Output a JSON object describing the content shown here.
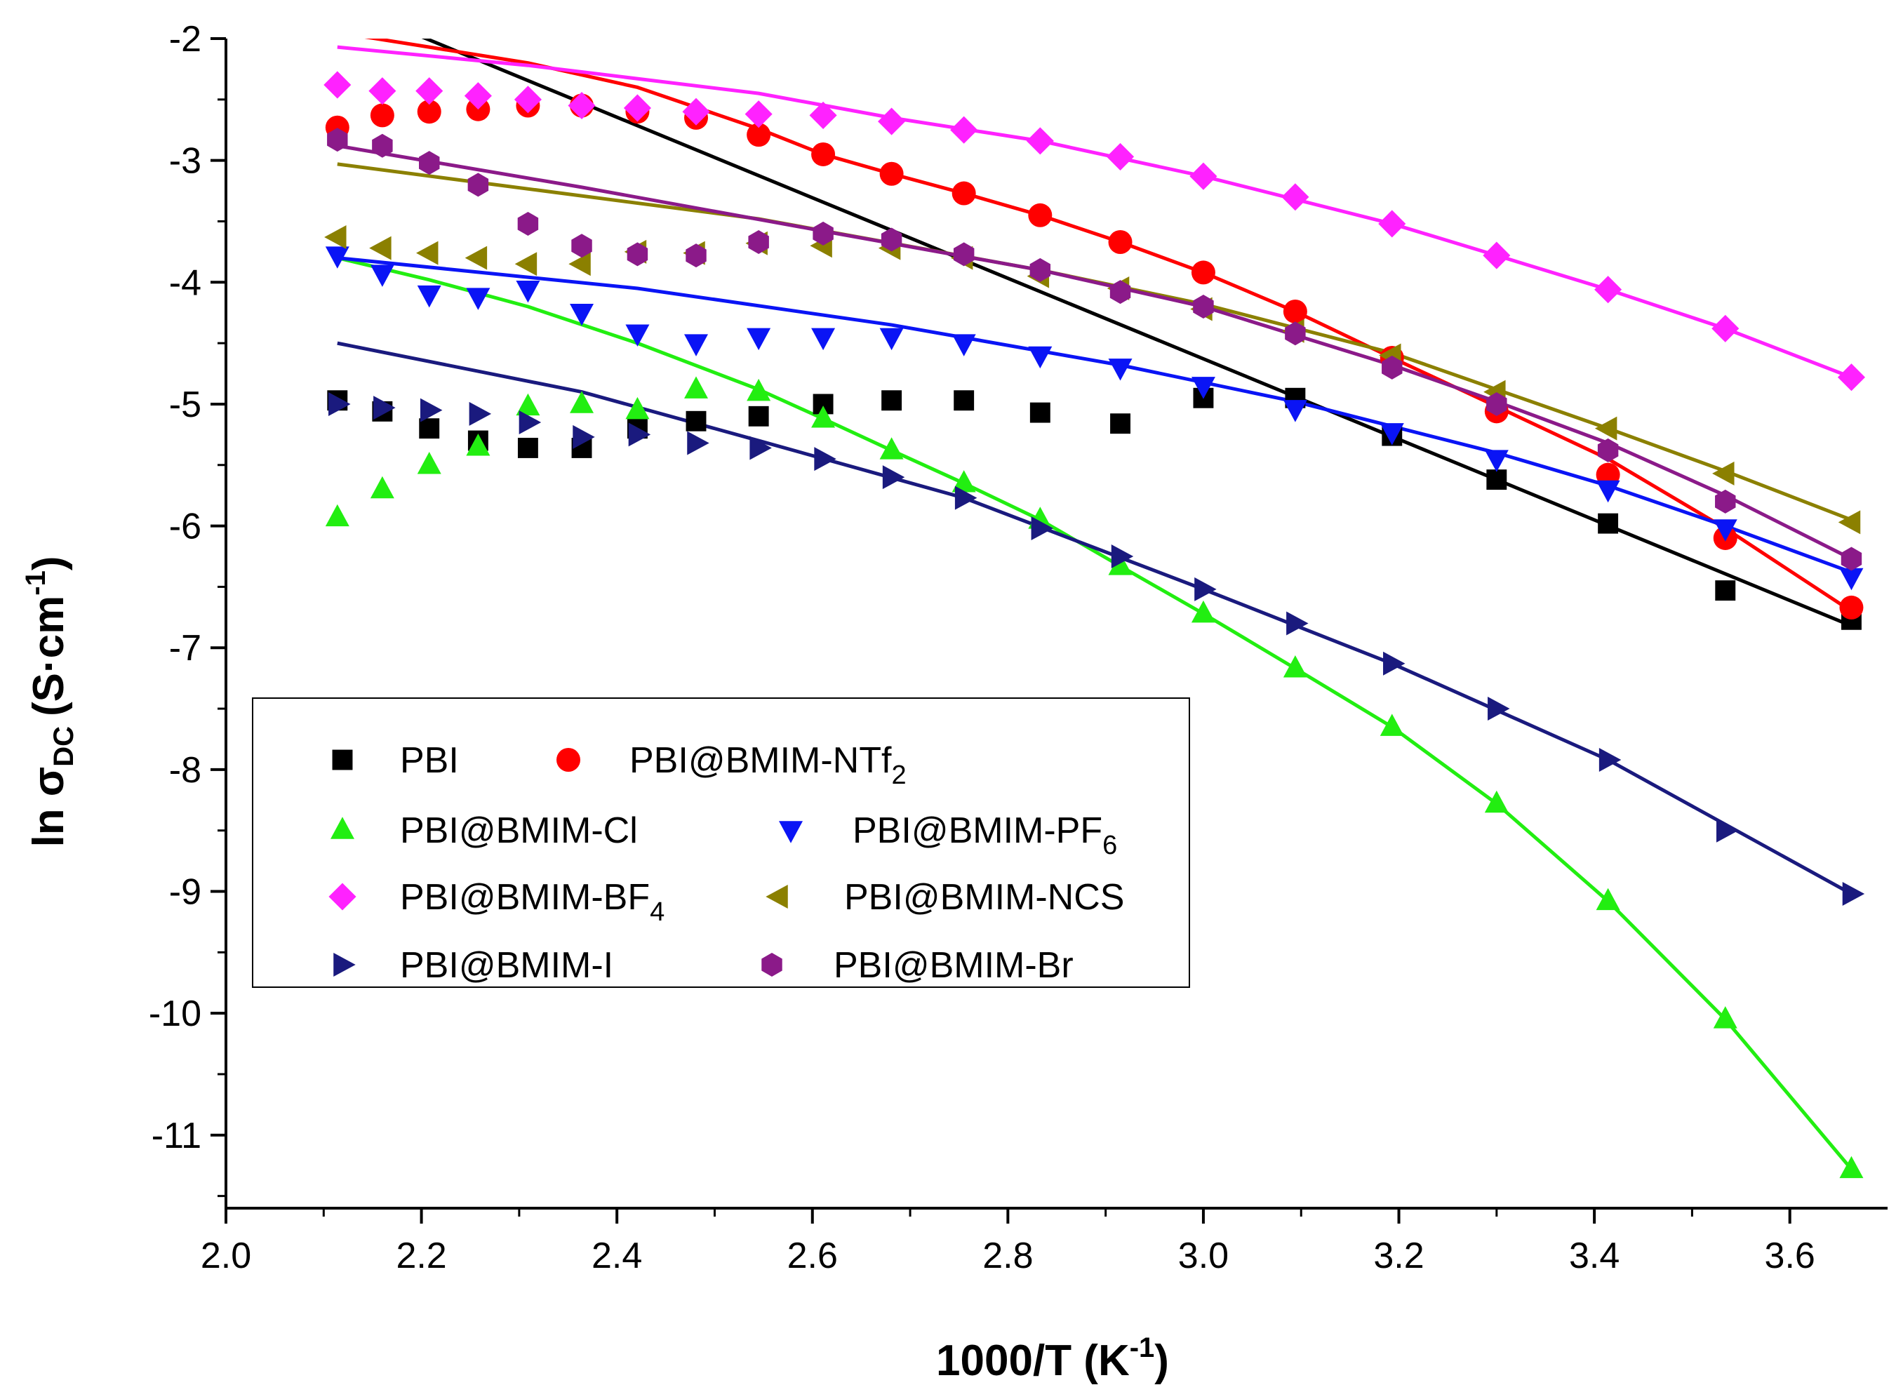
{
  "chart_data": {
    "type": "scatter",
    "title": "",
    "xlabel_main": "1000/T (K",
    "xlabel_sup": "-1",
    "xlabel_end": ")",
    "ylabel_main": "ln σ",
    "ylabel_sub": "DC",
    "ylabel_unit": "(S·cm",
    "ylabel_sup": "-1",
    "ylabel_end": ")",
    "xlim": [
      2.0,
      3.7
    ],
    "ylim": [
      -11.6,
      -2.0
    ],
    "xticks": [
      2.0,
      2.2,
      2.4,
      2.6,
      2.8,
      3.0,
      3.2,
      3.4,
      3.6
    ],
    "xtick_labels": [
      "2.0",
      "2.2",
      "2.4",
      "2.6",
      "2.8",
      "3.0",
      "3.2",
      "3.4",
      "3.6"
    ],
    "yticks": [
      -2,
      -3,
      -4,
      -5,
      -6,
      -7,
      -8,
      -9,
      -10,
      -11
    ],
    "ytick_labels": [
      "-2",
      "-3",
      "-4",
      "-5",
      "-6",
      "-7",
      "-8",
      "-9",
      "-10",
      "-11"
    ],
    "legend_position": "bottom-left",
    "x": [
      2.114,
      2.16,
      2.208,
      2.258,
      2.309,
      2.364,
      2.421,
      2.481,
      2.545,
      2.611,
      2.681,
      2.755,
      2.833,
      2.915,
      3.0,
      3.094,
      3.193,
      3.3,
      3.414,
      3.534,
      3.663
    ],
    "series": [
      {
        "name": "PBI",
        "sub": "",
        "color": "#000000",
        "marker": "square",
        "values": [
          -4.97,
          -5.06,
          -5.2,
          -5.3,
          -5.36,
          -5.36,
          -5.2,
          -5.14,
          -5.1,
          -5.0,
          -4.97,
          -4.97,
          -5.07,
          -5.16,
          -4.95,
          -4.95,
          -5.26,
          -5.62,
          -5.98,
          -6.53,
          -6.77
        ],
        "fit_x": [
          2.114,
          3.663
        ],
        "fit_y": [
          -1.7,
          -6.82
        ]
      },
      {
        "name": "PBI@BMIM-NTf",
        "sub": "2",
        "color": "#ff0000",
        "marker": "circle",
        "values": [
          -2.73,
          -2.63,
          -2.6,
          -2.58,
          -2.55,
          -2.55,
          -2.6,
          -2.65,
          -2.79,
          -2.95,
          -3.11,
          -3.27,
          -3.45,
          -3.67,
          -3.92,
          -4.24,
          -4.62,
          -5.06,
          -5.58,
          -6.1,
          -6.67
        ],
        "fit_x": [
          2.114,
          2.208,
          2.309,
          2.421,
          2.545,
          2.611,
          2.681,
          2.755,
          2.833,
          2.915,
          3.0,
          3.094,
          3.193,
          3.3,
          3.414,
          3.534,
          3.663
        ],
        "fit_y": [
          -1.95,
          -2.07,
          -2.2,
          -2.4,
          -2.74,
          -2.95,
          -3.11,
          -3.27,
          -3.45,
          -3.67,
          -3.92,
          -4.24,
          -4.62,
          -5.02,
          -5.45,
          -6.02,
          -6.7
        ]
      },
      {
        "name": "PBI@BMIM-Cl",
        "sub": "",
        "color": "#22ee11",
        "marker": "triangle-up",
        "values": [
          -5.93,
          -5.7,
          -5.5,
          -5.35,
          -5.02,
          -5.0,
          -5.05,
          -4.88,
          -4.9,
          -5.12,
          -5.38,
          -5.65,
          -5.95,
          -6.33,
          -6.72,
          -7.17,
          -7.65,
          -8.28,
          -9.08,
          -10.05,
          -11.28
        ],
        "fit_x": [
          2.114,
          2.208,
          2.309,
          2.421,
          2.545,
          2.611,
          2.681,
          2.755,
          2.833,
          2.915,
          3.0,
          3.094,
          3.193,
          3.3,
          3.414,
          3.534,
          3.663
        ],
        "fit_y": [
          -3.8,
          -3.98,
          -4.2,
          -4.5,
          -4.88,
          -5.12,
          -5.38,
          -5.65,
          -5.95,
          -6.33,
          -6.72,
          -7.17,
          -7.65,
          -8.28,
          -9.08,
          -10.05,
          -11.28
        ]
      },
      {
        "name": "PBI@BMIM-PF",
        "sub": "6",
        "color": "#0a14f5",
        "marker": "triangle-down",
        "values": [
          -3.78,
          -3.93,
          -4.1,
          -4.12,
          -4.06,
          -4.25,
          -4.42,
          -4.5,
          -4.45,
          -4.45,
          -4.45,
          -4.5,
          -4.6,
          -4.7,
          -4.85,
          -5.04,
          -5.23,
          -5.45,
          -5.7,
          -6.02,
          -6.42
        ],
        "fit_x": [
          2.114,
          2.421,
          2.681,
          2.915,
          3.094,
          3.3,
          3.414,
          3.534,
          3.663
        ],
        "fit_y": [
          -3.8,
          -4.05,
          -4.35,
          -4.68,
          -4.98,
          -5.4,
          -5.67,
          -6.0,
          -6.38
        ]
      },
      {
        "name": "PBI@BMIM-BF",
        "sub": "4",
        "color": "#ff22ff",
        "marker": "diamond",
        "values": [
          -2.38,
          -2.43,
          -2.43,
          -2.47,
          -2.5,
          -2.55,
          -2.57,
          -2.6,
          -2.62,
          -2.63,
          -2.68,
          -2.75,
          -2.84,
          -2.97,
          -3.13,
          -3.3,
          -3.52,
          -3.78,
          -4.06,
          -4.38,
          -4.78
        ],
        "fit_x": [
          2.114,
          2.309,
          2.545,
          2.681,
          2.833,
          3.0,
          3.193,
          3.3,
          3.414,
          3.534,
          3.663
        ],
        "fit_y": [
          -2.07,
          -2.22,
          -2.45,
          -2.65,
          -2.84,
          -3.13,
          -3.52,
          -3.78,
          -4.06,
          -4.38,
          -4.78
        ]
      },
      {
        "name": "PBI@BMIM-NCS",
        "sub": "",
        "color": "#8b8000",
        "marker": "triangle-left",
        "values": [
          -3.63,
          -3.72,
          -3.76,
          -3.8,
          -3.85,
          -3.85,
          -3.75,
          -3.76,
          -3.68,
          -3.7,
          -3.72,
          -3.8,
          -3.95,
          -4.05,
          -4.22,
          -4.4,
          -4.6,
          -4.9,
          -5.2,
          -5.57,
          -5.97
        ],
        "fit_x": [
          2.114,
          2.545,
          2.833,
          3.0,
          3.193,
          3.3,
          3.414,
          3.534,
          3.663
        ],
        "fit_y": [
          -3.03,
          -3.48,
          -3.9,
          -4.18,
          -4.58,
          -4.88,
          -5.2,
          -5.55,
          -5.95
        ]
      },
      {
        "name": "PBI@BMIM-I",
        "sub": "",
        "color": "#1a1a7e",
        "marker": "triangle-right",
        "values": [
          -5.0,
          -5.03,
          -5.05,
          -5.08,
          -5.15,
          -5.27,
          -5.25,
          -5.32,
          -5.36,
          -5.45,
          -5.6,
          -5.77,
          -6.02,
          -6.25,
          -6.52,
          -6.8,
          -7.13,
          -7.5,
          -7.92,
          -8.5,
          -9.02
        ],
        "fit_x": [
          2.114,
          2.364,
          2.545,
          2.755,
          3.0,
          3.193,
          3.414,
          3.663
        ],
        "fit_y": [
          -4.5,
          -4.9,
          -5.3,
          -5.77,
          -6.52,
          -7.13,
          -7.92,
          -9.02
        ]
      },
      {
        "name": "PBI@BMIM-Br",
        "sub": "",
        "color": "#8b1a89",
        "marker": "hexagon",
        "values": [
          -2.83,
          -2.88,
          -3.02,
          -3.2,
          -3.52,
          -3.7,
          -3.77,
          -3.78,
          -3.67,
          -3.6,
          -3.65,
          -3.77,
          -3.9,
          -4.08,
          -4.2,
          -4.42,
          -4.7,
          -5.0,
          -5.38,
          -5.8,
          -6.27
        ],
        "fit_x": [
          2.114,
          2.364,
          2.611,
          2.833,
          3.0,
          3.193,
          3.3,
          3.414,
          3.534,
          3.663
        ],
        "fit_y": [
          -2.88,
          -3.22,
          -3.58,
          -3.9,
          -4.2,
          -4.68,
          -4.98,
          -5.32,
          -5.75,
          -6.27
        ]
      }
    ]
  }
}
